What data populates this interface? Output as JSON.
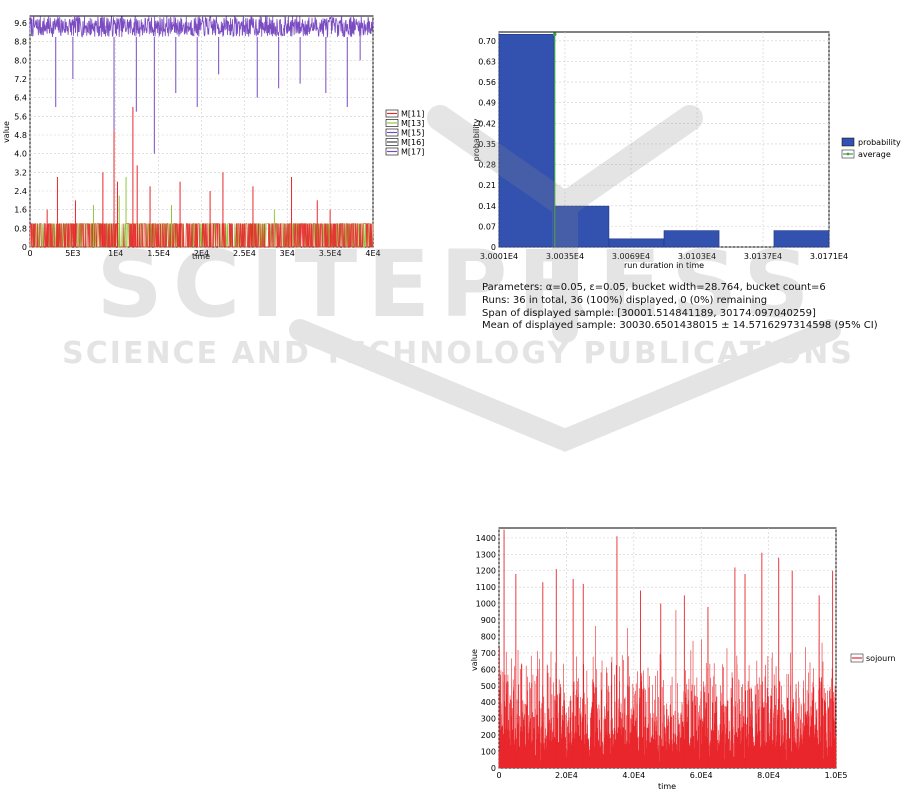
{
  "chart_data": [
    {
      "type": "line",
      "xlabel": "time",
      "ylabel": "value",
      "xlim": [
        0,
        40000
      ],
      "ylim": [
        0,
        9.9
      ],
      "x_ticks": [
        "0",
        "5E3",
        "1E4",
        "1.5E4",
        "2E4",
        "2.5E4",
        "3E4",
        "3.5E4",
        "4E4"
      ],
      "y_ticks": [
        "0",
        "0.8",
        "1.6",
        "2.4",
        "3.2",
        "4.0",
        "4.8",
        "5.6",
        "6.4",
        "7.2",
        "8.0",
        "8.8",
        "9.6"
      ],
      "legend_placement": "right",
      "series": [
        {
          "name": "M[11]",
          "color": "#e8262b",
          "baseline_range": [
            0,
            1
          ],
          "spikes": [
            [
              2000,
              1.6
            ],
            [
              3200,
              3.0
            ],
            [
              5300,
              2.0
            ],
            [
              8500,
              3.2
            ],
            [
              9800,
              5.0
            ],
            [
              10200,
              2.8
            ],
            [
              12000,
              6.0
            ],
            [
              12500,
              3.5
            ],
            [
              14000,
              2.6
            ],
            [
              17500,
              2.8
            ],
            [
              21000,
              2.4
            ],
            [
              22500,
              3.2
            ],
            [
              26000,
              2.6
            ],
            [
              30500,
              3.0
            ],
            [
              33500,
              2.0
            ],
            [
              35000,
              1.6
            ]
          ]
        },
        {
          "name": "M[13]",
          "color": "#90c83c",
          "baseline_range": [
            0,
            1
          ],
          "spikes": [
            [
              7400,
              1.8
            ],
            [
              10400,
              2.2
            ],
            [
              11200,
              3.0
            ],
            [
              16500,
              1.8
            ],
            [
              28500,
              1.6
            ]
          ]
        },
        {
          "name": "M[15]",
          "color": "#7a4bc1",
          "baseline_range": [
            9.0,
            9.9
          ],
          "dips": [
            [
              3000,
              6.0
            ],
            [
              5000,
              7.2
            ],
            [
              9800,
              5.0
            ],
            [
              12400,
              5.8
            ],
            [
              14500,
              4.0
            ],
            [
              17000,
              6.6
            ],
            [
              19500,
              6.0
            ],
            [
              22000,
              7.4
            ],
            [
              26500,
              6.4
            ],
            [
              29000,
              6.8
            ],
            [
              31500,
              7.0
            ],
            [
              34500,
              6.6
            ],
            [
              37000,
              6.0
            ],
            [
              38500,
              8.0
            ]
          ]
        },
        {
          "name": "M[16]",
          "color": "#444444"
        },
        {
          "name": "M[17]",
          "color": "#7a4bc1"
        }
      ]
    },
    {
      "type": "bar",
      "xlabel": "run duration in time",
      "ylabel": "probability",
      "ylim": [
        0,
        0.73
      ],
      "x_ticks": [
        "3.0001E4",
        "3.0035E4",
        "3.0069E4",
        "3.0103E4",
        "3.0137E4",
        "3.0171E4"
      ],
      "y_ticks": [
        "0",
        "0.07",
        "0.14",
        "0.21",
        "0.28",
        "0.35",
        "0.42",
        "0.49",
        "0.56",
        "0.63",
        "0.70"
      ],
      "bin_edges": [
        30001.5,
        30030.3,
        30059.0,
        30087.8,
        30116.6,
        30145.3,
        30174.1
      ],
      "values": [
        0.7222,
        0.1389,
        0.0278,
        0.0556,
        0.0,
        0.0556
      ],
      "average": 30030.65,
      "legend_placement": "right",
      "series": [
        {
          "name": "probability",
          "color": "#3352b0"
        },
        {
          "name": "average",
          "color": "#3ba14a"
        }
      ]
    },
    {
      "type": "line",
      "xlabel": "time",
      "ylabel": "value",
      "xlim": [
        0,
        100000
      ],
      "ylim": [
        0,
        1460
      ],
      "x_ticks": [
        "0",
        "2.0E4",
        "4.0E4",
        "6.0E4",
        "8.0E4",
        "1.0E5"
      ],
      "y_ticks": [
        "0",
        "100",
        "200",
        "300",
        "400",
        "500",
        "600",
        "700",
        "800",
        "900",
        "1000",
        "1100",
        "1200",
        "1300",
        "1400"
      ],
      "legend_placement": "right",
      "series": [
        {
          "name": "sojourn",
          "color": "#e8262b",
          "peaks": [
            [
              1500,
              1450
            ],
            [
              5000,
              1180
            ],
            [
              13000,
              1130
            ],
            [
              17000,
              1210
            ],
            [
              22000,
              1150
            ],
            [
              25000,
              1120
            ],
            [
              35000,
              1410
            ],
            [
              42000,
              1080
            ],
            [
              48000,
              1000
            ],
            [
              55000,
              1050
            ],
            [
              62000,
              980
            ],
            [
              70000,
              1220
            ],
            [
              73000,
              1180
            ],
            [
              78000,
              1310
            ],
            [
              83000,
              1280
            ],
            [
              87000,
              1200
            ],
            [
              95000,
              1050
            ],
            [
              99000,
              1200
            ]
          ]
        }
      ]
    }
  ],
  "stats": {
    "parameters": "Parameters: α=0.05, ε=0.05, bucket width=28.764, bucket count=6",
    "runs": "Runs: 36 in total, 36 (100%) displayed, 0 (0%) remaining",
    "span": "Span of displayed sample: [30001.514841189, 30174.097040259]",
    "mean": "Mean of displayed sample: 30030.6501438015 ± 14.5716297314598 (95% CI)"
  },
  "watermark": {
    "title": "SCITEPRESS",
    "subtitle": "SCIENCE AND TECHNOLOGY PUBLICATIONS"
  }
}
